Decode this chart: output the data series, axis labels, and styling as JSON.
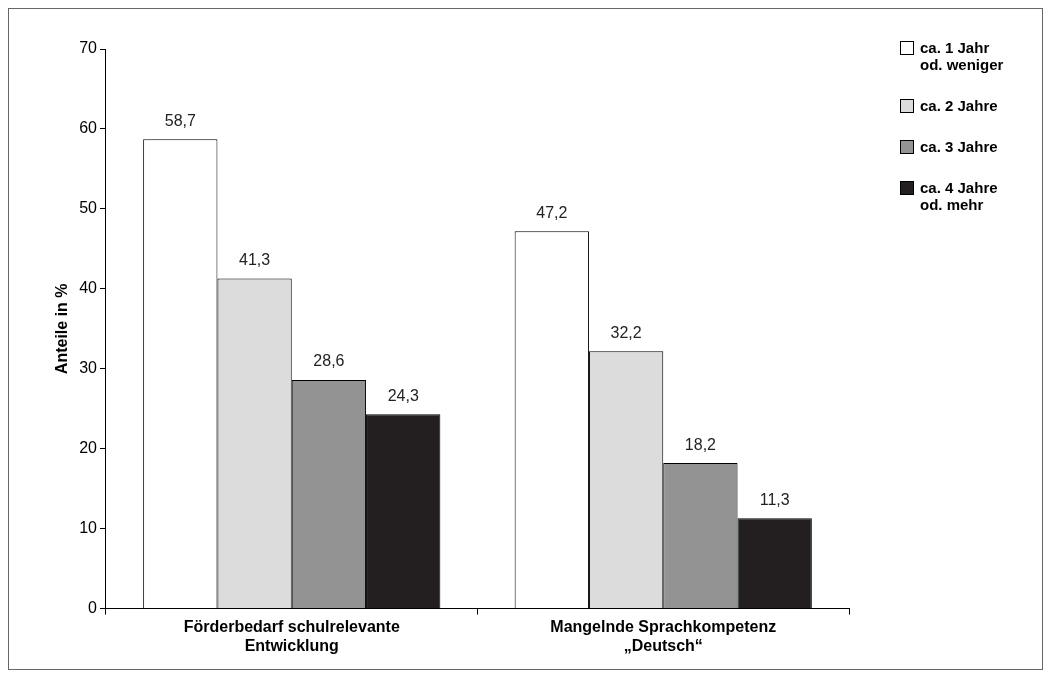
{
  "chart_data": {
    "type": "bar",
    "ylabel": "Anteile in %",
    "categories": [
      "Förderbedarf schulrelevante Entwicklung",
      "Mangelnde Sprachkompetenz „Deutsch“"
    ],
    "series": [
      {
        "name": "ca. 1 Jahr od. weniger",
        "color": "#ffffff",
        "values": [
          58.7,
          47.2
        ],
        "value_labels": [
          "58,7",
          "47,2"
        ]
      },
      {
        "name": "ca. 2 Jahre",
        "color": "#dcdcdc",
        "values": [
          41.3,
          32.2
        ],
        "value_labels": [
          "41,3",
          "32,2"
        ]
      },
      {
        "name": "ca. 3 Jahre",
        "color": "#939393",
        "values": [
          28.6,
          18.2
        ],
        "value_labels": [
          "28,6",
          "18,2"
        ]
      },
      {
        "name": "ca. 4 Jahre od. mehr",
        "color": "#231f20",
        "values": [
          24.3,
          11.3
        ],
        "value_labels": [
          "24,3",
          "11,3"
        ]
      }
    ],
    "ylim": [
      0,
      70
    ],
    "yticks": [
      0,
      10,
      20,
      30,
      40,
      50,
      60,
      70
    ],
    "grid": false,
    "legend": "top right"
  }
}
